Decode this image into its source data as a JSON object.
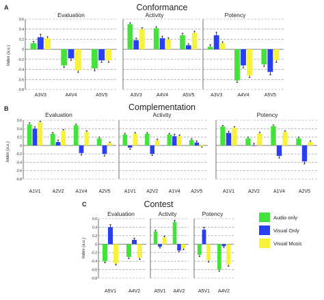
{
  "panels": [
    {
      "letter": "A",
      "title": "Conformance",
      "ylabel": "Index (a.u.)",
      "ytick_labels": [
        "0.6",
        "0.4",
        "0.2",
        "0",
        "-0.2",
        "-0.4",
        "-0.6",
        "-0.8"
      ],
      "categories": [
        "A3V3",
        "A4V4",
        "A5V5"
      ],
      "subplots": [
        {
          "title": "Evaluation",
          "values": [
            [
              0.12,
              -0.32,
              -0.38
            ],
            [
              0.24,
              -0.18,
              -0.22
            ],
            [
              0.22,
              -0.42,
              -0.22
            ]
          ],
          "errors": [
            [
              0.04,
              0.04,
              0.05
            ],
            [
              0.06,
              0.04,
              0.04
            ],
            [
              0.03,
              0.04,
              0.04
            ]
          ]
        },
        {
          "title": "Activity",
          "values": [
            [
              0.5,
              0.42,
              0.28
            ],
            [
              0.18,
              0.22,
              0.08
            ],
            [
              0.4,
              0.2,
              0.33
            ]
          ],
          "errors": [
            [
              0.03,
              0.03,
              0.04
            ],
            [
              0.04,
              0.04,
              0.03
            ],
            [
              0.03,
              0.03,
              0.03
            ]
          ]
        },
        {
          "title": "Potency",
          "values": [
            [
              0.05,
              -0.62,
              -0.3
            ],
            [
              0.28,
              -0.32,
              -0.45
            ],
            [
              0.12,
              -0.52,
              -0.22
            ]
          ],
          "errors": [
            [
              0.04,
              0.04,
              0.04
            ],
            [
              0.06,
              0.05,
              0.06
            ],
            [
              0.03,
              0.04,
              0.04
            ]
          ]
        }
      ]
    },
    {
      "letter": "B",
      "title": "Complementation",
      "ylabel": "Index (a.u.)",
      "ytick_labels": [
        "0.6",
        "0.4",
        "0.2",
        "0",
        "-0.2",
        "-0.4",
        "-0.6",
        "-0.8"
      ],
      "categories": [
        "A1V1",
        "A2V2",
        "A1V4",
        "A2V5"
      ],
      "subplots": [
        {
          "title": "Evaluation",
          "values": [
            [
              0.5,
              0.28,
              0.48,
              0.17
            ],
            [
              0.4,
              0.08,
              -0.18,
              -0.2
            ],
            [
              0.55,
              0.35,
              0.32,
              0.06
            ]
          ],
          "errors": [
            [
              0.04,
              0.03,
              0.03,
              0.03
            ],
            [
              0.05,
              0.05,
              0.05,
              0.05
            ],
            [
              0.03,
              0.03,
              0.03,
              0.02
            ]
          ]
        },
        {
          "title": "Activity",
          "values": [
            [
              0.26,
              0.28,
              0.26,
              0.13
            ],
            [
              -0.05,
              -0.2,
              0.22,
              0.07
            ],
            [
              0.28,
              0.12,
              0.22,
              -0.02
            ]
          ],
          "errors": [
            [
              0.03,
              0.03,
              0.03,
              0.03
            ],
            [
              0.04,
              0.04,
              0.05,
              0.04
            ],
            [
              0.03,
              0.03,
              0.03,
              0.02
            ]
          ]
        },
        {
          "title": "Potency",
          "values": [
            [
              0.45,
              0.17,
              0.46,
              0.17
            ],
            [
              0.3,
              0.0,
              -0.25,
              -0.38
            ],
            [
              0.42,
              0.28,
              0.32,
              0.08
            ]
          ],
          "errors": [
            [
              0.03,
              0.03,
              0.03,
              0.03
            ],
            [
              0.04,
              0.05,
              0.05,
              0.06
            ],
            [
              0.03,
              0.04,
              0.03,
              0.03
            ]
          ]
        }
      ]
    },
    {
      "letter": "C",
      "title": "Contest",
      "ylabel": "Index (a.u.)",
      "ytick_labels": [
        "0.6",
        "0.4",
        "0.2",
        "0",
        "-0.2",
        "-0.4",
        "-0.6",
        "-0.8"
      ],
      "categories": [
        "A5V1",
        "A4V2"
      ],
      "subplots": [
        {
          "title": "Evaluation",
          "values": [
            [
              -0.4,
              -0.3
            ],
            [
              0.4,
              0.1
            ],
            [
              -0.45,
              -0.32
            ]
          ],
          "errors": [
            [
              0.04,
              0.04
            ],
            [
              0.06,
              0.04
            ],
            [
              0.04,
              0.04
            ]
          ]
        },
        {
          "title": "Activity",
          "values": [
            [
              0.3,
              0.52
            ],
            [
              -0.06,
              -0.15
            ],
            [
              0.16,
              -0.1
            ]
          ],
          "errors": [
            [
              0.03,
              0.04
            ],
            [
              0.03,
              0.03
            ],
            [
              0.03,
              0.03
            ]
          ]
        },
        {
          "title": "Potency",
          "values": [
            [
              -0.25,
              -0.6
            ],
            [
              0.34,
              -0.05
            ],
            [
              -0.38,
              -0.48
            ]
          ],
          "errors": [
            [
              0.04,
              0.04
            ],
            [
              0.06,
              0.03
            ],
            [
              0.04,
              0.04
            ]
          ]
        }
      ]
    }
  ],
  "legend": [
    {
      "label": "Audio only",
      "color": "#44e33b"
    },
    {
      "label": "Visual Only",
      "color": "#2a3ff2"
    },
    {
      "label": "Visual Music",
      "color": "#f7f23b"
    }
  ],
  "chart_data": {
    "type": "bar",
    "series_names": [
      "Audio only",
      "Visual Only",
      "Visual Music"
    ],
    "colors": {
      "audio": "#44e33b",
      "visual": "#2a3ff2",
      "music": "#f7f23b"
    },
    "ylim": [
      -0.8,
      0.6
    ],
    "grid": true,
    "legend_position": "right of panel C"
  }
}
